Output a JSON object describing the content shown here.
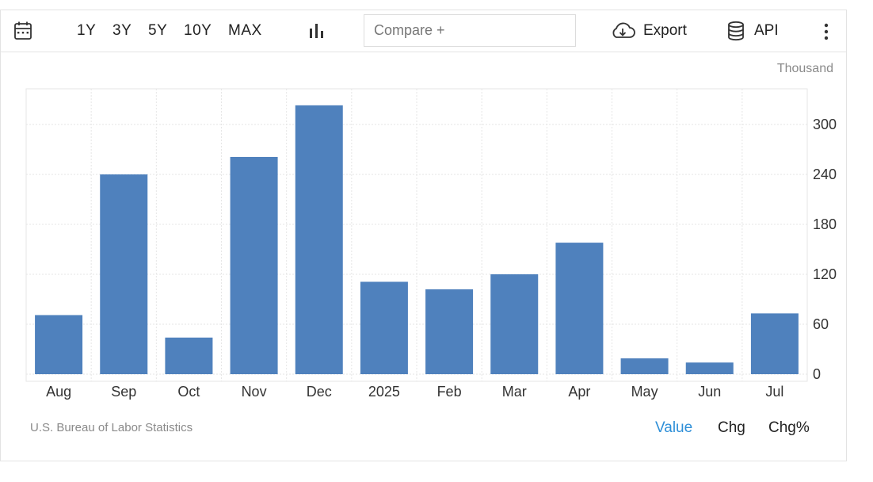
{
  "toolbar": {
    "calendar_icon": "calendar-icon",
    "ranges": [
      "1Y",
      "3Y",
      "5Y",
      "10Y",
      "MAX"
    ],
    "chart_type_icon": "bar-chart-icon",
    "compare_placeholder": "Compare +",
    "export_label": "Export",
    "export_icon": "cloud-download-icon",
    "api_label": "API",
    "api_icon": "database-icon",
    "more_icon": "vertical-dots-icon"
  },
  "unit_label": "Thousand",
  "source": "U.S. Bureau of Labor Statistics",
  "modes": [
    "Value",
    "Chg",
    "Chg%"
  ],
  "active_mode": "Value",
  "colors": {
    "bar": "#4f81bd",
    "accent": "#2e8fd8",
    "grid": "#e6e6e6"
  },
  "chart_data": {
    "type": "bar",
    "categories": [
      "Aug",
      "Sep",
      "Oct",
      "Nov",
      "Dec",
      "2025",
      "Feb",
      "Mar",
      "Apr",
      "May",
      "Jun",
      "Jul"
    ],
    "values": [
      71,
      240,
      44,
      261,
      323,
      111,
      102,
      120,
      158,
      19,
      14,
      73
    ],
    "ylim": [
      0,
      340
    ],
    "yticks": [
      0,
      60,
      120,
      180,
      240,
      300
    ],
    "y_axis_position": "right",
    "grid": true
  }
}
